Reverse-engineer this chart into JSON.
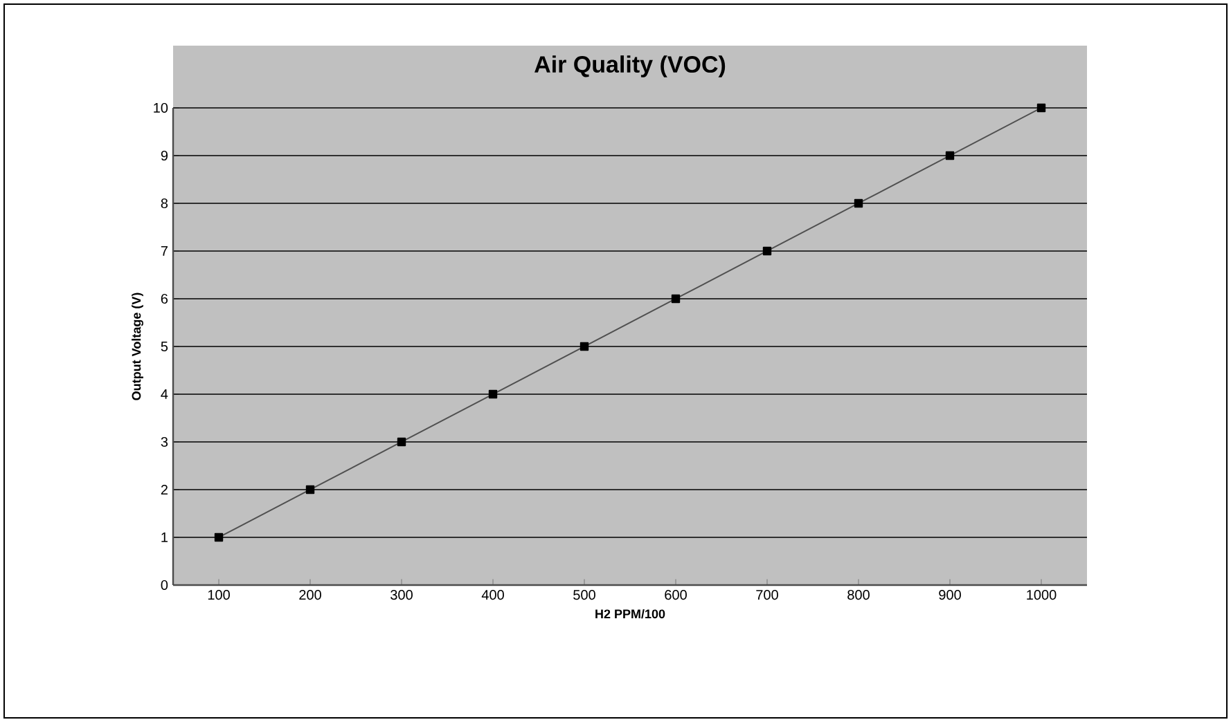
{
  "chart_data": {
    "type": "line",
    "title": "Air Quality (VOC)",
    "xlabel": "H2 PPM/100",
    "ylabel": "Output Voltage (V)",
    "categories": [
      "100",
      "200",
      "300",
      "400",
      "500",
      "600",
      "700",
      "800",
      "900",
      "1000"
    ],
    "series": [
      {
        "color": "#505050",
        "values": [
          1,
          2,
          3,
          4,
          5,
          6,
          7,
          8,
          9,
          10
        ]
      }
    ],
    "ylim": [
      0,
      10
    ],
    "yticks": [
      0,
      1,
      2,
      3,
      4,
      5,
      6,
      7,
      8,
      9,
      10
    ],
    "grid": "y",
    "marker": "square"
  }
}
